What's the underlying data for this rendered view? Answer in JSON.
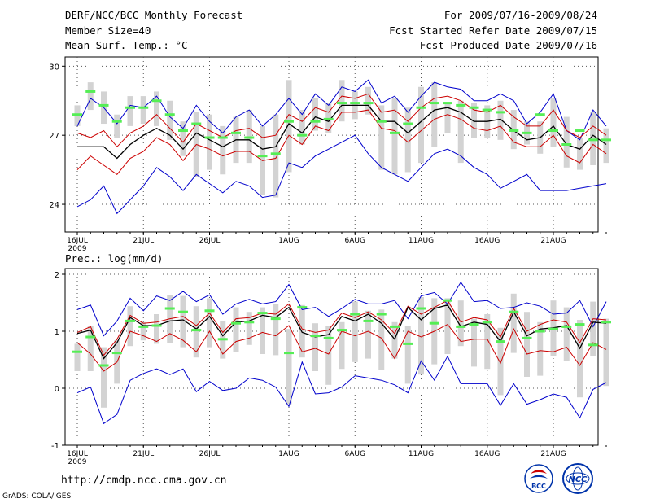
{
  "header": {
    "title": "DERF/NCC/BCC Monthly Forecast",
    "member": "Member Size=40",
    "variable": "Mean Surf. Temp.: °C",
    "period": "For 2009/07/16-2009/08/24",
    "refer_date": "Fcst Started Refer Date 2009/07/15",
    "produced_date": "Fcst Produced Date 2009/07/16"
  },
  "footer": {
    "url": "http://cmdp.ncc.cma.gov.cn",
    "grads": "GrADS: COLA/IGES",
    "logo1_text": "BCC",
    "logo2_text": "NCC"
  },
  "colors": {
    "envelope": "#0000cc",
    "spread": "#cc0000",
    "mean": "#000000",
    "box": "#d3d3d3",
    "member_mark": "#55ee55",
    "grid": "#555555"
  },
  "chart_data": [
    {
      "type": "line",
      "title": "Mean Surf. Temp.: °C",
      "xlabel": "",
      "ylabel": "°C",
      "ylim": [
        22.8,
        30.4
      ],
      "yticks": [
        24,
        27,
        30
      ],
      "x_days": 40,
      "x_ticks": [
        {
          "day": 0,
          "label": "16JUL"
        },
        {
          "day": 5,
          "label": "21JUL"
        },
        {
          "day": 10,
          "label": "26JUL"
        },
        {
          "day": 16,
          "label": "1AUG"
        },
        {
          "day": 21,
          "label": "6AUG"
        },
        {
          "day": 26,
          "label": "11AUG"
        },
        {
          "day": 31,
          "label": "16AUG"
        },
        {
          "day": 36,
          "label": "21AUG"
        }
      ],
      "year_label": "2009",
      "series": [
        {
          "name": "max",
          "color": "envelope",
          "values": [
            27.4,
            28.6,
            28.2,
            27.5,
            28.3,
            28.2,
            28.7,
            27.8,
            27.3,
            28.3,
            27.6,
            27.1,
            27.8,
            28.1,
            27.4,
            27.9,
            28.6,
            27.9,
            28.8,
            28.3,
            29.1,
            28.9,
            29.4,
            28.4,
            28.7,
            28.0,
            28.7,
            29.3,
            29.1,
            29.0,
            28.5,
            28.5,
            28.8,
            28.5,
            27.5,
            28.0,
            28.8,
            27.2,
            26.8,
            28.1,
            27.4
          ]
        },
        {
          "name": "upper",
          "color": "spread",
          "values": [
            27.1,
            26.9,
            27.2,
            26.5,
            27.1,
            27.4,
            27.9,
            27.3,
            26.7,
            27.5,
            27.2,
            26.9,
            27.2,
            27.3,
            26.9,
            27.0,
            27.9,
            27.6,
            28.2,
            28.0,
            28.7,
            28.6,
            28.8,
            28.0,
            28.1,
            27.6,
            28.2,
            28.6,
            28.7,
            28.5,
            28.1,
            28.0,
            28.3,
            27.8,
            27.4,
            27.4,
            28.1,
            27.2,
            26.9,
            27.4,
            27.0
          ]
        },
        {
          "name": "mean",
          "color": "mean",
          "values": [
            26.5,
            26.5,
            26.5,
            26.0,
            26.6,
            27.0,
            27.3,
            27.0,
            26.4,
            27.1,
            26.8,
            26.5,
            26.8,
            26.8,
            26.4,
            26.5,
            27.5,
            27.1,
            27.8,
            27.6,
            28.3,
            28.3,
            28.3,
            27.6,
            27.6,
            27.1,
            27.6,
            28.1,
            28.2,
            28.0,
            27.6,
            27.6,
            27.7,
            27.2,
            26.8,
            26.9,
            27.4,
            26.6,
            26.4,
            27.0,
            26.6
          ]
        },
        {
          "name": "lower",
          "color": "spread",
          "values": [
            25.5,
            26.1,
            25.7,
            25.3,
            26.0,
            26.3,
            26.9,
            26.6,
            25.9,
            26.6,
            26.4,
            26.1,
            26.3,
            26.3,
            25.9,
            26.0,
            27.0,
            26.6,
            27.4,
            27.2,
            28.0,
            28.0,
            28.1,
            27.3,
            27.2,
            26.7,
            27.2,
            27.7,
            27.9,
            27.7,
            27.3,
            27.2,
            27.4,
            26.7,
            26.5,
            26.5,
            27.0,
            26.1,
            25.8,
            26.6,
            26.2
          ]
        },
        {
          "name": "min",
          "color": "envelope",
          "values": [
            23.9,
            24.2,
            24.8,
            23.6,
            24.2,
            24.8,
            25.6,
            25.2,
            24.6,
            25.3,
            24.9,
            24.5,
            25.0,
            24.8,
            24.3,
            24.4,
            25.8,
            25.6,
            26.1,
            26.4,
            26.7,
            27.0,
            26.2,
            25.6,
            25.3,
            25.0,
            25.6,
            26.2,
            26.4,
            26.1,
            25.6,
            25.3,
            24.7,
            25.0,
            25.3,
            24.6,
            24.6,
            24.6,
            24.7,
            24.8,
            24.9
          ]
        }
      ],
      "boxes": [
        {
          "low": 27.4,
          "high": 28.3
        },
        {
          "low": 28.1,
          "high": 29.3
        },
        {
          "low": 27.5,
          "high": 28.9
        },
        {
          "low": 26.9,
          "high": 27.9
        },
        {
          "low": 27.4,
          "high": 28.7
        },
        {
          "low": 27.5,
          "high": 28.7
        },
        {
          "low": 27.4,
          "high": 28.9
        },
        {
          "low": 26.8,
          "high": 28.5
        },
        {
          "low": 26.1,
          "high": 27.6
        },
        {
          "low": 25.2,
          "high": 28.0
        },
        {
          "low": 25.5,
          "high": 27.9
        },
        {
          "low": 25.3,
          "high": 27.4
        },
        {
          "low": 25.8,
          "high": 27.8
        },
        {
          "low": 25.8,
          "high": 28.1
        },
        {
          "low": 24.4,
          "high": 27.4
        },
        {
          "low": 24.3,
          "high": 27.9
        },
        {
          "low": 25.4,
          "high": 29.4
        },
        {
          "low": 26.6,
          "high": 28.1
        },
        {
          "low": 27.2,
          "high": 28.6
        },
        {
          "low": 27.1,
          "high": 28.4
        },
        {
          "low": 27.6,
          "high": 29.4
        },
        {
          "low": 27.7,
          "high": 28.9
        },
        {
          "low": 27.9,
          "high": 29.1
        },
        {
          "low": 25.5,
          "high": 28.3
        },
        {
          "low": 25.3,
          "high": 28.6
        },
        {
          "low": 25.4,
          "high": 28.2
        },
        {
          "low": 25.8,
          "high": 29.1
        },
        {
          "low": 26.5,
          "high": 29.3
        },
        {
          "low": 27.1,
          "high": 28.4
        },
        {
          "low": 25.8,
          "high": 28.5
        },
        {
          "low": 26.9,
          "high": 28.4
        },
        {
          "low": 26.9,
          "high": 28.3
        },
        {
          "low": 26.8,
          "high": 28.5
        },
        {
          "low": 26.4,
          "high": 28.1
        },
        {
          "low": 26.6,
          "high": 27.6
        },
        {
          "low": 26.2,
          "high": 27.6
        },
        {
          "low": 26.5,
          "high": 28.6
        },
        {
          "low": 25.6,
          "high": 27.8
        },
        {
          "low": 25.5,
          "high": 26.9
        },
        {
          "low": 25.7,
          "high": 28.0
        },
        {
          "low": 25.8,
          "high": 27.3
        }
      ],
      "members": [
        27.9,
        28.9,
        28.3,
        27.6,
        28.2,
        28.2,
        28.5,
        27.9,
        27.2,
        27.5,
        26.9,
        26.9,
        27.1,
        26.9,
        26.1,
        26.2,
        27.6,
        27.0,
        27.6,
        27.7,
        28.4,
        28.4,
        28.4,
        27.6,
        27.1,
        27.5,
        28.2,
        28.4,
        28.4,
        28.3,
        28.2,
        28.1,
        28.0,
        27.2,
        27.1,
        27.9,
        27.2,
        26.6,
        27.2,
        26.8,
        26.8
      ]
    },
    {
      "type": "line",
      "title": "Prec.: log(mm/d)",
      "xlabel": "",
      "ylabel": "log(mm/d)",
      "ylim": [
        -1,
        2.1
      ],
      "yticks": [
        -1,
        0,
        1,
        2
      ],
      "x_days": 40,
      "x_ticks": [
        {
          "day": 0,
          "label": "16JUL"
        },
        {
          "day": 5,
          "label": "21JUL"
        },
        {
          "day": 10,
          "label": "26JUL"
        },
        {
          "day": 16,
          "label": "1AUG"
        },
        {
          "day": 21,
          "label": "6AUG"
        },
        {
          "day": 26,
          "label": "11AUG"
        },
        {
          "day": 31,
          "label": "16AUG"
        },
        {
          "day": 36,
          "label": "21AUG"
        }
      ],
      "year_label": "2009",
      "series": [
        {
          "name": "max",
          "color": "envelope",
          "values": [
            1.38,
            1.46,
            0.92,
            1.18,
            1.58,
            1.36,
            1.62,
            1.54,
            1.7,
            1.52,
            1.64,
            1.3,
            1.48,
            1.56,
            1.48,
            1.52,
            1.82,
            1.38,
            1.42,
            1.26,
            1.4,
            1.56,
            1.48,
            1.48,
            1.54,
            1.22,
            1.62,
            1.68,
            1.48,
            1.86,
            1.52,
            1.54,
            1.4,
            1.42,
            1.5,
            1.44,
            1.3,
            1.32,
            1.54,
            1.08,
            1.52
          ]
        },
        {
          "name": "upper",
          "color": "spread",
          "values": [
            0.98,
            1.08,
            0.58,
            0.86,
            1.28,
            1.14,
            1.16,
            1.22,
            1.26,
            1.1,
            1.32,
            0.98,
            1.22,
            1.24,
            1.32,
            1.3,
            1.48,
            1.04,
            0.98,
            1.02,
            1.32,
            1.24,
            1.34,
            1.2,
            0.96,
            1.44,
            1.3,
            1.42,
            1.54,
            1.16,
            1.24,
            1.2,
            0.9,
            1.4,
            1.0,
            1.12,
            1.2,
            1.16,
            0.8,
            1.22,
            1.2
          ]
        },
        {
          "name": "mean",
          "color": "mean",
          "values": [
            0.96,
            1.02,
            0.52,
            0.8,
            1.24,
            1.1,
            1.1,
            1.18,
            1.2,
            1.04,
            1.26,
            0.92,
            1.16,
            1.18,
            1.28,
            1.24,
            1.42,
            0.98,
            0.9,
            0.94,
            1.26,
            1.18,
            1.3,
            1.14,
            0.86,
            1.42,
            1.2,
            1.4,
            1.46,
            1.08,
            1.16,
            1.12,
            0.82,
            1.34,
            0.92,
            1.04,
            1.06,
            1.1,
            0.7,
            1.16,
            1.14
          ]
        },
        {
          "name": "lower",
          "color": "spread",
          "values": [
            0.8,
            0.6,
            0.3,
            0.46,
            1.0,
            0.92,
            0.82,
            0.96,
            0.84,
            0.64,
            1.0,
            0.6,
            0.82,
            0.88,
            0.98,
            0.92,
            1.1,
            0.64,
            0.7,
            0.6,
            1.0,
            0.92,
            1.0,
            0.88,
            0.52,
            1.0,
            0.9,
            1.0,
            1.12,
            0.82,
            0.86,
            0.86,
            0.44,
            1.04,
            0.6,
            0.66,
            0.64,
            0.72,
            0.4,
            0.8,
            0.68
          ]
        },
        {
          "name": "min",
          "color": "envelope",
          "values": [
            -0.08,
            0.02,
            -0.62,
            -0.46,
            0.14,
            0.26,
            0.34,
            0.24,
            0.34,
            -0.06,
            0.12,
            -0.04,
            0.0,
            0.18,
            0.14,
            0.02,
            -0.32,
            0.46,
            -0.1,
            -0.08,
            0.02,
            0.22,
            0.18,
            0.14,
            0.06,
            -0.08,
            0.48,
            0.14,
            0.56,
            0.08,
            0.08,
            0.08,
            -0.3,
            0.08,
            -0.28,
            -0.2,
            -0.1,
            -0.16,
            -0.52,
            -0.02,
            0.1
          ]
        }
      ],
      "boxes": [
        {
          "low": 0.3,
          "high": 0.78
        },
        {
          "low": 0.3,
          "high": 1.1
        },
        {
          "low": -0.34,
          "high": 0.72
        },
        {
          "low": 0.08,
          "high": 0.84
        },
        {
          "low": 0.74,
          "high": 1.44
        },
        {
          "low": 0.84,
          "high": 1.16
        },
        {
          "low": 0.78,
          "high": 1.3
        },
        {
          "low": 0.8,
          "high": 1.64
        },
        {
          "low": 0.72,
          "high": 1.62
        },
        {
          "low": 0.54,
          "high": 1.44
        },
        {
          "low": 0.72,
          "high": 1.58
        },
        {
          "low": 0.52,
          "high": 1.18
        },
        {
          "low": 0.64,
          "high": 1.42
        },
        {
          "low": 0.76,
          "high": 1.34
        },
        {
          "low": 0.6,
          "high": 1.42
        },
        {
          "low": 0.58,
          "high": 1.48
        },
        {
          "low": -0.28,
          "high": 1.04
        },
        {
          "low": 0.54,
          "high": 1.46
        },
        {
          "low": 0.3,
          "high": 1.14
        },
        {
          "low": 0.06,
          "high": 1.1
        },
        {
          "low": 0.34,
          "high": 1.16
        },
        {
          "low": 0.46,
          "high": 1.52
        },
        {
          "low": 0.52,
          "high": 1.36
        },
        {
          "low": 0.32,
          "high": 1.38
        },
        {
          "low": 0.52,
          "high": 1.16
        },
        {
          "low": 0.08,
          "high": 1.1
        },
        {
          "low": 0.24,
          "high": 1.6
        },
        {
          "low": 0.42,
          "high": 1.58
        },
        {
          "low": 0.6,
          "high": 1.58
        },
        {
          "low": 0.74,
          "high": 1.54
        },
        {
          "low": 0.38,
          "high": 1.22
        },
        {
          "low": 0.34,
          "high": 1.3
        },
        {
          "low": -0.12,
          "high": 1.06
        },
        {
          "low": 0.62,
          "high": 1.66
        },
        {
          "low": 0.2,
          "high": 1.34
        },
        {
          "low": 0.22,
          "high": 1.16
        },
        {
          "low": 0.56,
          "high": 1.54
        },
        {
          "low": 0.48,
          "high": 1.42
        },
        {
          "low": -0.16,
          "high": 1.2
        },
        {
          "low": 0.56,
          "high": 1.52
        },
        {
          "low": 0.04,
          "high": 1.22
        }
      ],
      "members": [
        0.64,
        0.9,
        0.4,
        0.62,
        1.18,
        1.08,
        1.1,
        1.4,
        1.34,
        1.02,
        1.36,
        0.86,
        1.14,
        1.16,
        1.32,
        1.22,
        0.62,
        1.42,
        0.92,
        0.88,
        1.02,
        1.3,
        1.18,
        1.3,
        1.08,
        0.78,
        1.4,
        1.14,
        1.54,
        1.08,
        1.12,
        1.16,
        0.82,
        1.34,
        0.88,
        1.0,
        1.04,
        1.08,
        1.12,
        0.76,
        1.16
      ]
    }
  ]
}
